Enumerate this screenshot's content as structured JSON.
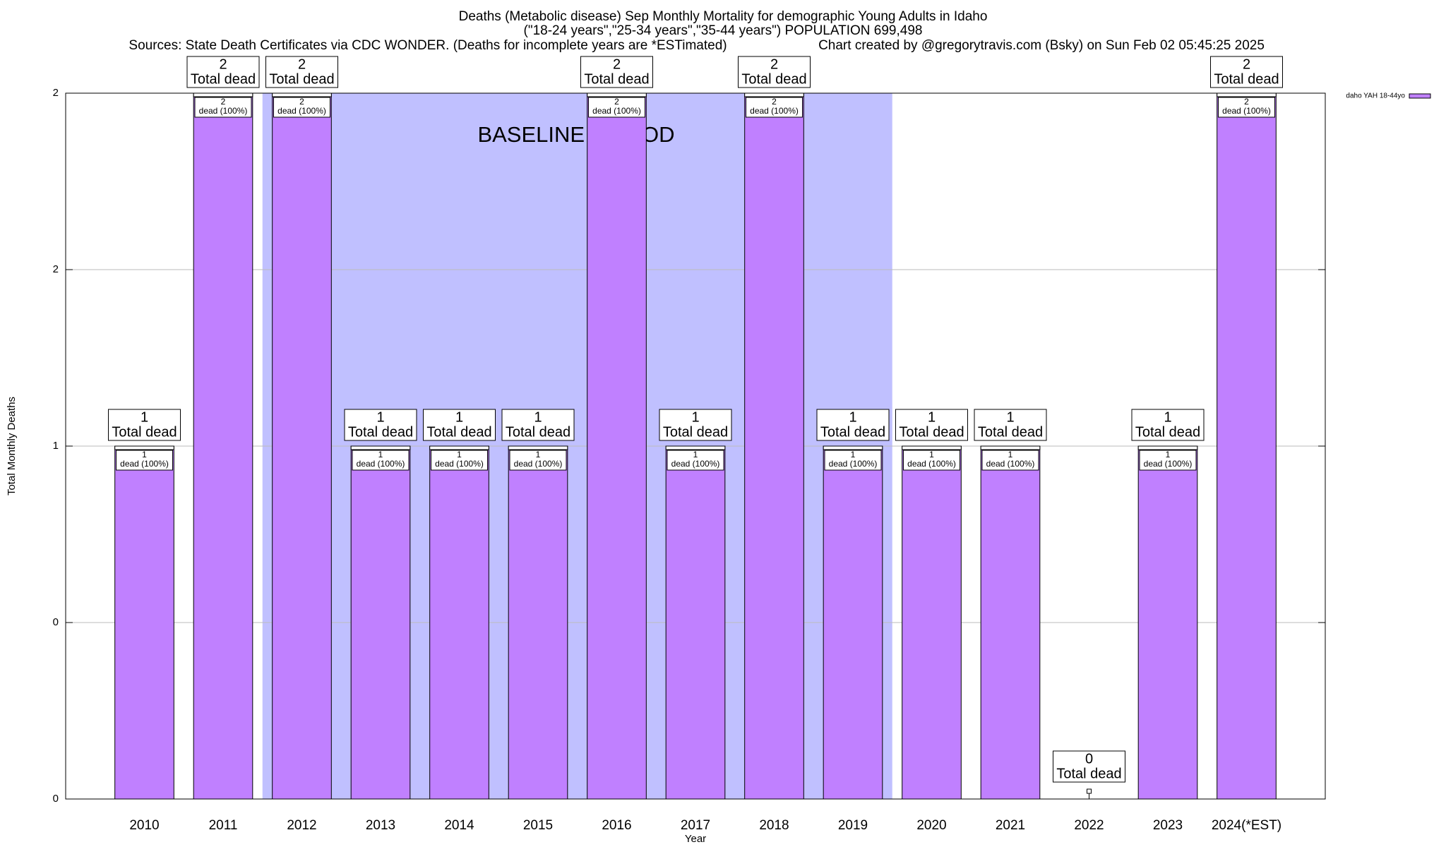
{
  "chart_data": {
    "type": "bar",
    "title": "Deaths (Metabolic disease) Sep Monthly Mortality for demographic Young Adults in Idaho",
    "subtitle": "(\"18-24 years\",\"25-34 years\",\"35-44 years\") POPULATION 699,498",
    "source": "Sources: State Death Certificates via CDC WONDER. (Deaths for incomplete years are *ESTimated)",
    "credit": "Chart created by @gregorytravis.com (Bsky) on Sun Feb 02 05:45:25 2025",
    "x_label": "Year",
    "y_label": "Total Monthly Deaths",
    "categories": [
      "2010",
      "2011",
      "2012",
      "2013",
      "2014",
      "2015",
      "2016",
      "2017",
      "2018",
      "2019",
      "2020",
      "2021",
      "2022",
      "2023",
      "2024(*EST)"
    ],
    "series": [
      {
        "name": "daho YAH 18-44yo",
        "color": "#c080ff",
        "values": [
          1,
          2,
          2,
          1,
          1,
          1,
          2,
          1,
          2,
          1,
          1,
          1,
          0,
          1,
          2
        ]
      }
    ],
    "total_label": "Total dead",
    "share_label": "dead (100%)",
    "baseline": {
      "label": "BASELINE PERIOD",
      "start": "2012",
      "end": "2019",
      "color": "#c0c0ff"
    },
    "ylim": [
      0,
      2
    ],
    "yticks": [
      0,
      {
        "value": 0.5,
        "label": "0"
      },
      1,
      {
        "value": 1.5,
        "label": "2"
      },
      2
    ],
    "grid": true,
    "legend": "top-right"
  }
}
